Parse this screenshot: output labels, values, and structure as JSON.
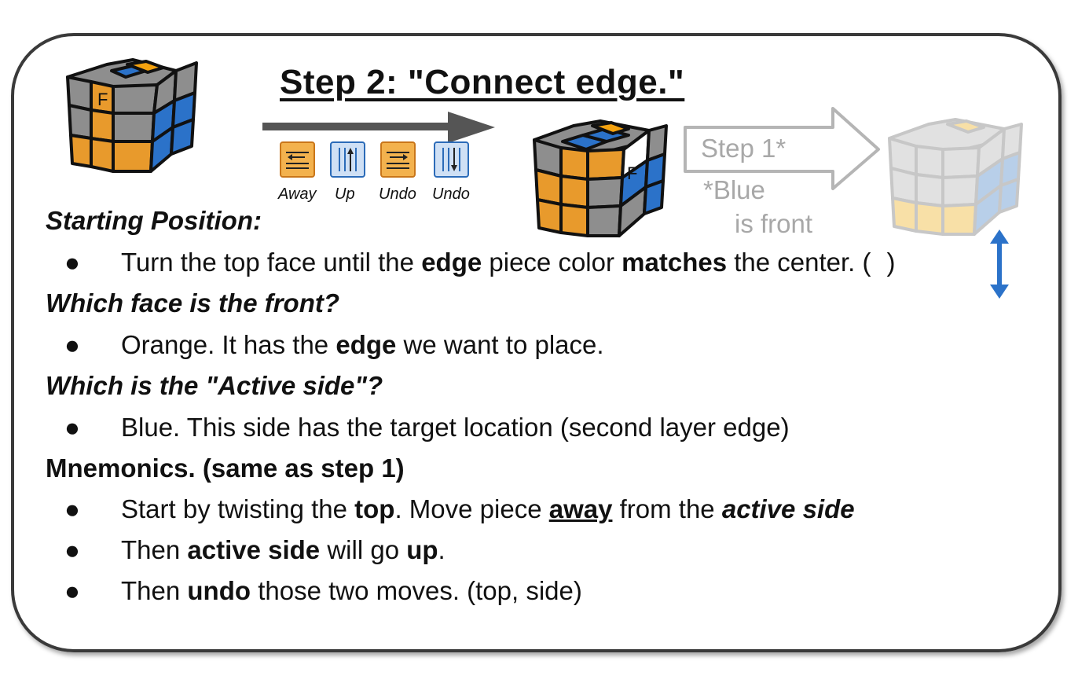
{
  "title": "Step 2: \"Connect edge.\"",
  "cubes": {
    "face_label": "F"
  },
  "moves": [
    {
      "label": "Away",
      "icon": "top-left-arrow-icon",
      "color": "#e89a2c"
    },
    {
      "label": "Up",
      "icon": "column-up-arrow-icon",
      "color": "#3a7fd0"
    },
    {
      "label": "Undo",
      "icon": "top-right-arrow-icon",
      "color": "#e89a2c"
    },
    {
      "label": "Undo",
      "icon": "column-down-arrow-icon",
      "color": "#3a7fd0"
    }
  ],
  "next_step": {
    "label": "Step 1*",
    "note_line1": "*Blue",
    "note_line2": "is front"
  },
  "sections": {
    "starting": {
      "heading": "Starting Position:",
      "bullet": {
        "t1": "Turn the top face until the ",
        "b1": "edge",
        "t2": " piece color ",
        "b2": "matches",
        "t3": " the center. (",
        "t4": ")"
      }
    },
    "front": {
      "heading": "Which face is the front?",
      "bullet": {
        "t1": "Orange. It has the ",
        "b1": "edge",
        "t2": " we want to place."
      }
    },
    "active": {
      "heading": "Which is the \"Active side\"?",
      "bullet": {
        "t1": "Blue. This side has the target location (second layer edge)"
      }
    },
    "mnemonics": {
      "heading": "Mnemonics. (same as step 1)",
      "bullets": [
        {
          "t1": "Start by twisting the ",
          "b1": "top",
          "t2": ". Move piece ",
          "u1": "away",
          "t3": " from the ",
          "i1": "active side"
        },
        {
          "t1": "Then ",
          "b1": "active side",
          "t2": " will go ",
          "b2": "up",
          "t3": "."
        },
        {
          "t1": "Then ",
          "b1": "undo",
          "t2": " those two moves. (top, side)"
        }
      ]
    }
  },
  "colors": {
    "orange": "#e89a2c",
    "blue": "#2b72c9",
    "gray": "#8e8e8e",
    "yellow": "#f4a20f",
    "ghost": "#a8a8a8",
    "border": "#3a3a3a"
  }
}
